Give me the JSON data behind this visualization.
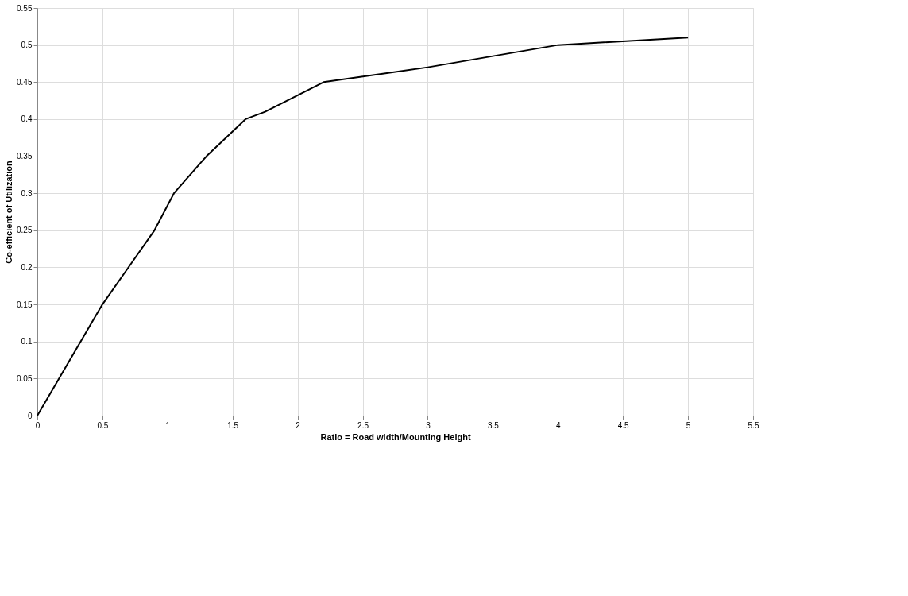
{
  "chart_data": {
    "type": "line",
    "xlabel": "Ratio = Road width/Mounting Height",
    "ylabel": "Co-efficient of Utilization",
    "x": [
      0,
      0.5,
      0.7,
      0.9,
      1.05,
      1.3,
      1.6,
      1.75,
      2.2,
      3,
      4,
      5
    ],
    "series": [
      {
        "color": "#000000",
        "values": [
          0,
          0.15,
          0.2,
          0.25,
          0.3,
          0.35,
          0.4,
          0.41,
          0.45,
          0.47,
          0.5,
          0.51
        ]
      }
    ],
    "xlim": [
      0,
      5.5
    ],
    "xticks": [
      0,
      0.5,
      1,
      1.5,
      2,
      2.5,
      3,
      3.5,
      4,
      4.5,
      5,
      5.5
    ],
    "ylim": [
      0,
      0.55
    ],
    "yticks": [
      0,
      0.05,
      0.1,
      0.15,
      0.2,
      0.25,
      0.3,
      0.35,
      0.4,
      0.45,
      0.5,
      0.55
    ],
    "grid": true,
    "marker": "none",
    "line_style": "solid"
  }
}
